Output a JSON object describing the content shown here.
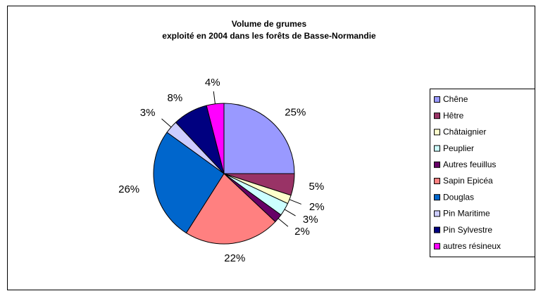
{
  "chart_data": {
    "type": "pie",
    "title": [
      "Volume de grumes",
      "exploité en 2004 dans les forêts de Basse-Normandie"
    ],
    "categories": [
      "Chêne",
      "Hêtre",
      "Châtaignier",
      "Peuplier",
      "Autres feuillus",
      "Sapin Epicéa",
      "Douglas",
      "Pin Maritime",
      "Pin Sylvestre",
      "autres résineux"
    ],
    "values": [
      25,
      5,
      2,
      3,
      2,
      22,
      26,
      3,
      8,
      4
    ],
    "value_labels": [
      "25%",
      "5%",
      "2%",
      "3%",
      "2%",
      "22%",
      "26%",
      "3%",
      "8%",
      "4%"
    ],
    "colors": [
      "#9999FF",
      "#993366",
      "#FFFFCC",
      "#CCFFFF",
      "#660066",
      "#FF8080",
      "#0066CC",
      "#CCCCFF",
      "#000080",
      "#FF00FF"
    ],
    "legend": "right"
  }
}
